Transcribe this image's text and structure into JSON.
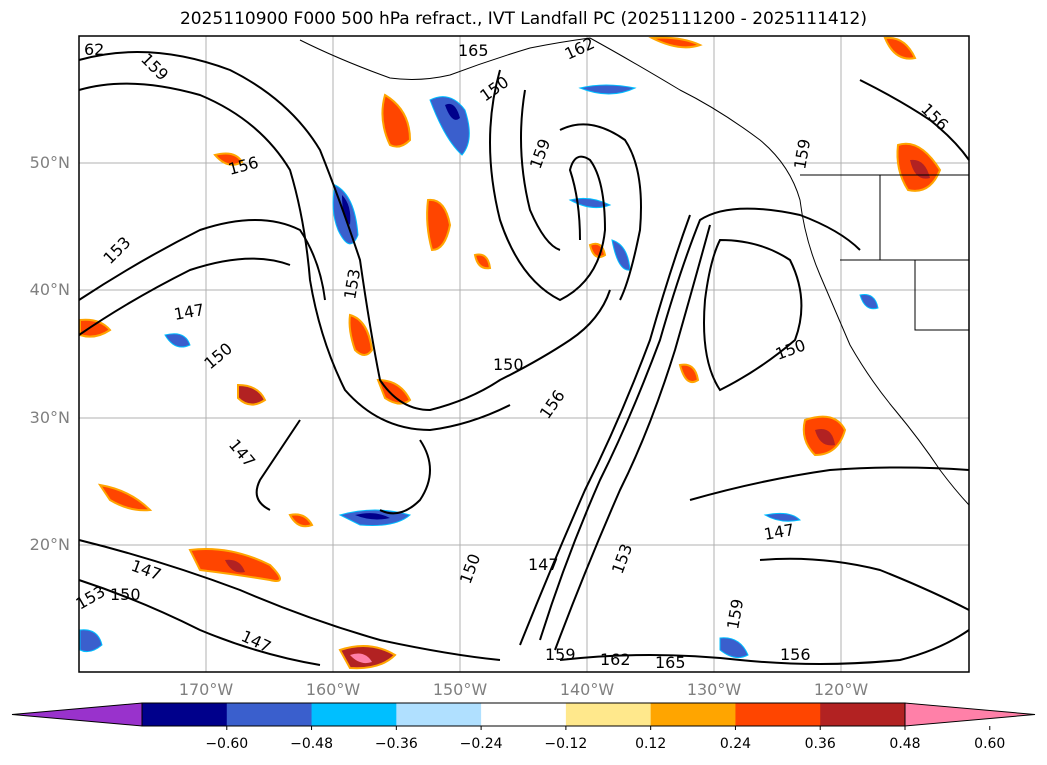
{
  "title": "2025110900 F000 500 hPa refract., IVT Landfall PC (2025111200 - 2025111412)",
  "lat_labels": [
    "50°N",
    "40°N",
    "30°N",
    "20°N"
  ],
  "lon_labels": [
    "170°W",
    "160°W",
    "150°W",
    "140°W",
    "130°W",
    "120°W"
  ],
  "colorbar": {
    "ticks": [
      "−0.60",
      "−0.48",
      "−0.36",
      "−0.24",
      "−0.12",
      "0.12",
      "0.24",
      "0.36",
      "0.48",
      "0.60"
    ],
    "colors": [
      "#9932cc",
      "#00008b",
      "#3a5fcd",
      "#00bfff",
      "#b0e0ff",
      "#ffffff",
      "#ffe88c",
      "#ffa500",
      "#ff4500",
      "#b22222",
      "#ff80a8"
    ]
  },
  "contour_labels": [
    "62",
    "165",
    "162",
    "159",
    "156",
    "153",
    "147",
    "150",
    "159",
    "150",
    "147",
    "150",
    "156",
    "153",
    "150",
    "147",
    "153",
    "159",
    "162",
    "165",
    "156",
    "150",
    "147",
    "147",
    "153",
    "159",
    "150",
    "147",
    "159",
    "156"
  ],
  "colors": {
    "land": "#000000",
    "grid": "#b0b0b0",
    "contour": "#000000"
  }
}
